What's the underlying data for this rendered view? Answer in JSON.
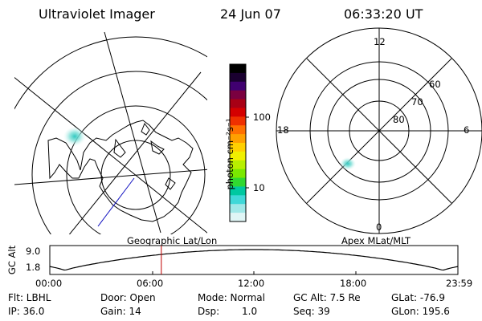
{
  "header": {
    "instrument": "Ultraviolet Imager",
    "date": "24 Jun 07",
    "time": "06:33:20 UT"
  },
  "colorbar": {
    "unit": "photon cm⁻²s⁻¹",
    "ticks": [
      "100",
      "10"
    ],
    "colors": [
      "#000000",
      "#1a0030",
      "#400070",
      "#7a0040",
      "#a80015",
      "#d40000",
      "#ef3000",
      "#ff7000",
      "#ffa000",
      "#ffd000",
      "#f0f000",
      "#b8f000",
      "#7ae800",
      "#30d830",
      "#00c8a0",
      "#40d8d8",
      "#a0e8e8",
      "#e0f6f6"
    ]
  },
  "left_panel": {
    "caption": "Geographic Lat/Lon"
  },
  "right_panel": {
    "caption": "Apex MLat/MLT",
    "mlt_labels": {
      "top": "12",
      "left": "18",
      "right": "6",
      "bottom": "0"
    },
    "lat_labels": [
      "60",
      "70",
      "80"
    ]
  },
  "altitude_plot": {
    "axis_label": "GC Alt",
    "y_ticks": [
      "9.0",
      "1.8"
    ],
    "x_ticks": [
      "00:00",
      "06:00",
      "12:00",
      "18:00",
      "23:59"
    ],
    "current_time_hours": 6.556
  },
  "footer": {
    "flt": "Flt: LBHL",
    "ip": "IP: 36.0",
    "door": "Door: Open",
    "gain": "Gain: 14",
    "mode": "Mode: Normal",
    "dsp_label": "Dsp:",
    "dsp_value": "1.0",
    "gc_alt": "GC Alt: 7.5 Re",
    "seq": "Seq: 39",
    "glat": "GLat: -76.9",
    "glon": "GLon: 195.6"
  },
  "colors": {
    "line": "#000000",
    "track": "#1010c0",
    "time_marker": "#c00000",
    "aurora": "#40d0c8"
  }
}
